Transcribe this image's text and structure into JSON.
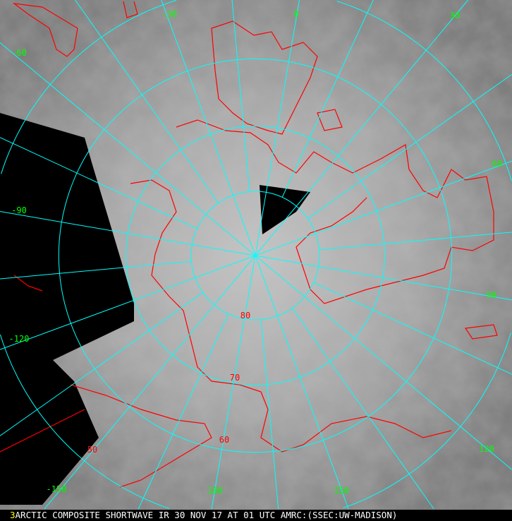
{
  "caption": {
    "frame_number": "3",
    "text": "ARCTIC COMPOSITE SHORTWAVE IR 30 NOV 17 AT 01 UTC AMRC:(SSEC:UW-MADISON)"
  },
  "map": {
    "projection": "polar stereographic, north pole",
    "latitude_labels": [
      "80",
      "70",
      "60",
      "50"
    ],
    "longitude_labels": [
      "0",
      "30",
      "60",
      "90",
      "120",
      "150",
      "180",
      "-150",
      "-120",
      "-90",
      "-60",
      "-30"
    ],
    "colors": {
      "graticule": "#00ffff",
      "coastline": "#ff0000",
      "longitude_label": "#00ff00",
      "latitude_label": "#ff0000",
      "no_data": "#000000",
      "caption_frame": "#ffff00"
    }
  }
}
